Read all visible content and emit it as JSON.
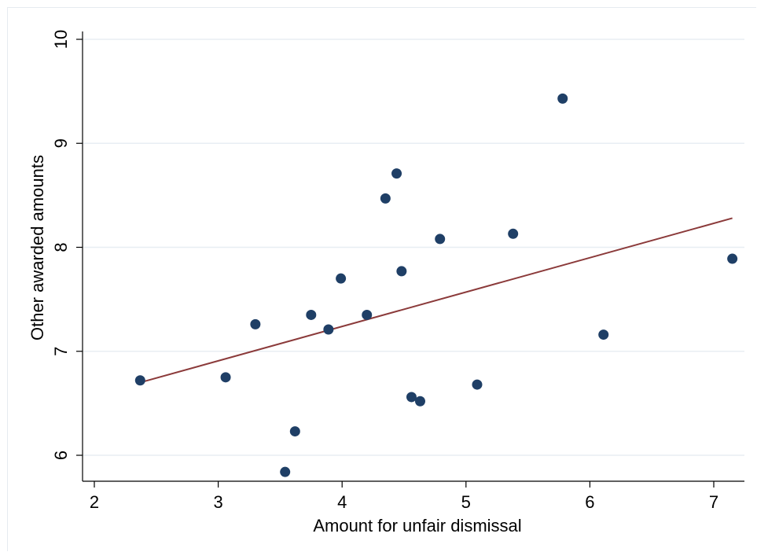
{
  "chart_data": {
    "type": "scatter",
    "title": "",
    "xlabel": "Amount for unfair dismissal",
    "ylabel": "Other awarded amounts",
    "xlim": [
      2,
      7.25
    ],
    "ylim": [
      5.75,
      10.05
    ],
    "xticks": [
      2,
      3,
      4,
      5,
      6,
      7
    ],
    "yticks": [
      6,
      7,
      8,
      9,
      10
    ],
    "grid": "horizontal",
    "legend": "none",
    "colors": {
      "points": "#1f3f66",
      "fit_line": "#8b3a3a",
      "gridline": "#e8eef3",
      "axis": "#000000"
    },
    "points": [
      {
        "x": 2.37,
        "y": 6.72
      },
      {
        "x": 3.06,
        "y": 6.75
      },
      {
        "x": 3.3,
        "y": 7.26
      },
      {
        "x": 3.54,
        "y": 5.84
      },
      {
        "x": 3.62,
        "y": 6.23
      },
      {
        "x": 3.75,
        "y": 7.35
      },
      {
        "x": 3.89,
        "y": 7.21
      },
      {
        "x": 3.99,
        "y": 7.7
      },
      {
        "x": 4.2,
        "y": 7.35
      },
      {
        "x": 4.35,
        "y": 8.47
      },
      {
        "x": 4.44,
        "y": 8.71
      },
      {
        "x": 4.48,
        "y": 7.77
      },
      {
        "x": 4.56,
        "y": 6.56
      },
      {
        "x": 4.63,
        "y": 6.52
      },
      {
        "x": 4.79,
        "y": 8.08
      },
      {
        "x": 5.09,
        "y": 6.68
      },
      {
        "x": 5.38,
        "y": 8.13
      },
      {
        "x": 5.78,
        "y": 9.43
      },
      {
        "x": 6.11,
        "y": 7.16
      },
      {
        "x": 7.15,
        "y": 7.89
      }
    ],
    "fit_line": {
      "x": [
        2.37,
        7.15
      ],
      "y": [
        6.7,
        8.28
      ]
    }
  }
}
